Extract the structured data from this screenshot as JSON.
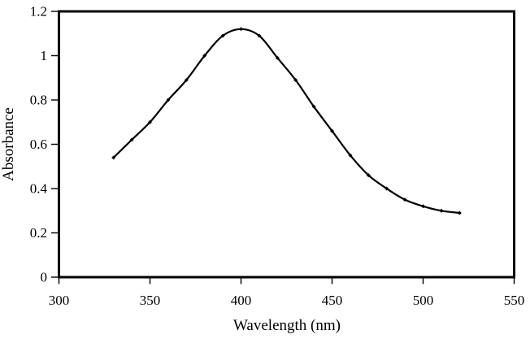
{
  "chart_data": {
    "type": "line",
    "title": "",
    "xlabel": "Wavelength (nm)",
    "ylabel": "Absorbance",
    "x": [
      330,
      340,
      350,
      360,
      370,
      380,
      390,
      400,
      410,
      420,
      430,
      440,
      450,
      460,
      470,
      480,
      490,
      500,
      510,
      520
    ],
    "y": [
      0.54,
      0.62,
      0.7,
      0.8,
      0.89,
      1.0,
      1.09,
      1.12,
      1.09,
      0.99,
      0.89,
      0.77,
      0.66,
      0.55,
      0.46,
      0.4,
      0.35,
      0.32,
      0.3,
      0.29
    ],
    "xlim": [
      300,
      550
    ],
    "ylim": [
      0,
      1.2
    ],
    "x_tick_values": [
      300,
      350,
      400,
      450,
      500,
      550
    ],
    "x_tick_labels": [
      "300",
      "350",
      "400",
      "450",
      "500",
      "550"
    ],
    "y_tick_values": [
      0,
      0.2,
      0.4,
      0.6,
      0.8,
      1,
      1.2
    ],
    "y_tick_labels": [
      "0",
      "0.2",
      "0.4",
      "0.6",
      "0.8",
      "1",
      "1.2"
    ],
    "grid": false,
    "legend_position": "none",
    "line_color": "#000000",
    "axis_color": "#000000",
    "background_color": "#ffffff",
    "marker": "small-black-diamond",
    "curve_style": "smooth"
  }
}
